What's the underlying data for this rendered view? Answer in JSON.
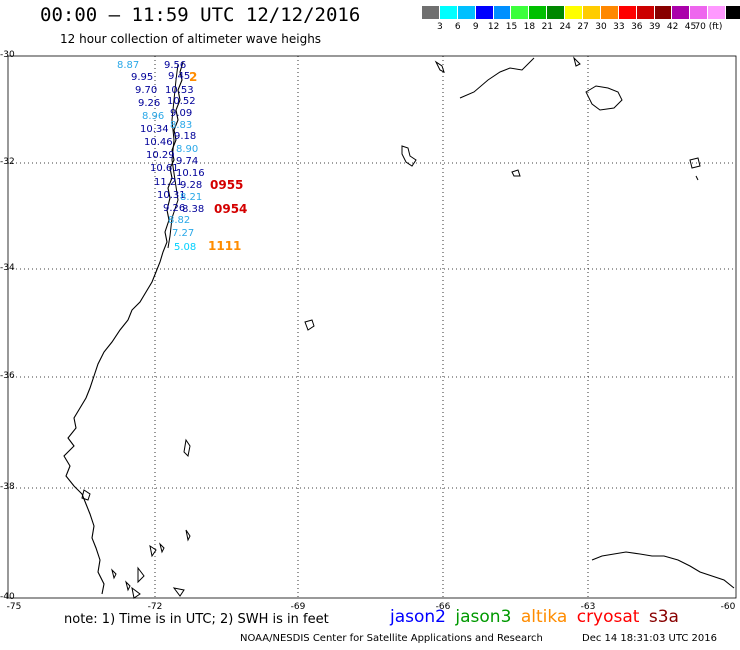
{
  "header": {
    "title": "00:00 – 11:59 UTC 12/12/2016",
    "subtitle": "12 hour collection of altimeter wave heighs"
  },
  "colorbar": {
    "colors": [
      "#707070",
      "#00ffff",
      "#00c0ff",
      "#0000ff",
      "#0090ff",
      "#3cff3c",
      "#00c000",
      "#008800",
      "#ffff00",
      "#ffcc00",
      "#ff8800",
      "#ff0000",
      "#cc0000",
      "#880000",
      "#aa00aa",
      "#ee66ee",
      "#ff99ff",
      "#000000"
    ],
    "labels": [
      "3",
      "6",
      "9",
      "12",
      "15",
      "18",
      "21",
      "24",
      "27",
      "30",
      "33",
      "36",
      "39",
      "42",
      "45",
      "70 (ft)"
    ]
  },
  "axes": {
    "lat_labels": [
      "-30",
      "-32",
      "-34",
      "-36",
      "-38",
      "-40"
    ],
    "lon_labels": [
      "-75",
      "-72",
      "-69",
      "-66",
      "-63",
      "-60"
    ]
  },
  "observations": [
    {
      "value": "8.87",
      "color": "#2aa8e8"
    },
    {
      "value": "9.56",
      "color": "#000099"
    },
    {
      "value": "9.95",
      "color": "#000099"
    },
    {
      "value": "9.45",
      "color": "#000099"
    },
    {
      "value": "9.70",
      "color": "#000099"
    },
    {
      "value": "10.53",
      "color": "#000099"
    },
    {
      "value": "9.26",
      "color": "#000099"
    },
    {
      "value": "10.52",
      "color": "#000099"
    },
    {
      "value": "8.96",
      "color": "#2aa8e8"
    },
    {
      "value": "9.09",
      "color": "#000099"
    },
    {
      "value": "10.34",
      "color": "#000099"
    },
    {
      "value": "8.83",
      "color": "#2aa8e8"
    },
    {
      "value": "10.46",
      "color": "#000099"
    },
    {
      "value": "9.18",
      "color": "#000099"
    },
    {
      "value": "10.29",
      "color": "#000099"
    },
    {
      "value": "8.90",
      "color": "#2aa8e8"
    },
    {
      "value": "10.61",
      "color": "#000099"
    },
    {
      "value": "9.74",
      "color": "#000099"
    },
    {
      "value": "11.21",
      "color": "#000099"
    },
    {
      "value": "10.16",
      "color": "#000099"
    },
    {
      "value": "10.31",
      "color": "#000099"
    },
    {
      "value": "9.28",
      "color": "#000099"
    },
    {
      "value": "9.26",
      "color": "#000099"
    },
    {
      "value": "8.21",
      "color": "#2aa8e8"
    },
    {
      "value": "8.82",
      "color": "#2aa8e8"
    },
    {
      "value": "8.38",
      "color": "#000099"
    },
    {
      "value": "7.27",
      "color": "#2aa8e8"
    },
    {
      "value": "5.08",
      "color": "#00d0ff"
    }
  ],
  "pass_times": [
    {
      "label": "2",
      "color": "#ff8c00"
    },
    {
      "label": "0955",
      "color": "#d40000"
    },
    {
      "label": "0954",
      "color": "#d40000"
    },
    {
      "label": "1111",
      "color": "#ff8c00"
    }
  ],
  "footer": {
    "note": "note:  1) Time is in UTC;  2) SWH is in feet",
    "legend": [
      {
        "label": "jason2",
        "color": "#0000ff"
      },
      {
        "label": "jason3",
        "color": "#009900"
      },
      {
        "label": "altika",
        "color": "#ff8c00"
      },
      {
        "label": "cryosat",
        "color": "#ff0000"
      },
      {
        "label": "s3a",
        "color": "#880000"
      }
    ],
    "credit": "NOAA/NESDIS Center for Satellite Applications and Research",
    "date": "Dec 14 18:31:03 UTC 2016"
  }
}
